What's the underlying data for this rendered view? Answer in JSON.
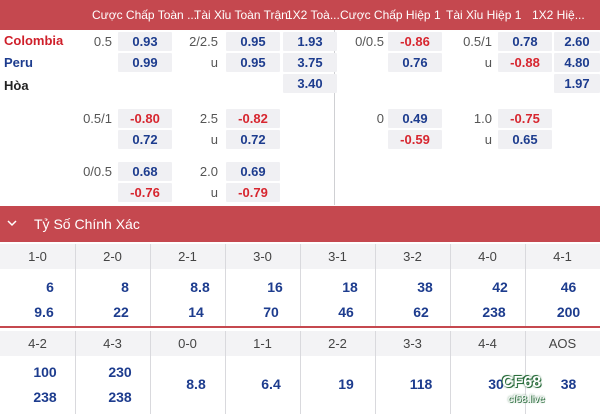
{
  "header": {
    "col1": "Cược Chấp Toàn ...",
    "col2": "Tài Xỉu Toàn Trận",
    "col3": "1X2 Toà...",
    "col4": "Cược Chấp Hiệp 1",
    "col5": "Tài Xỉu Hiệp 1",
    "col6": "1X2 Hiệ..."
  },
  "teams": {
    "home": "Colombia",
    "away": "Peru",
    "draw": "Hòa"
  },
  "rows": [
    {
      "hcp_ft": "0.5",
      "hcp_ft_home": "0.93",
      "hcp_ft_away": "0.99",
      "ou_ft": "2/2.5",
      "ou_ft_over": "0.95",
      "ou_ft_u": "u",
      "ou_ft_under": "0.95",
      "x_home": "1.93",
      "x_away": "3.75",
      "x_draw": "3.40",
      "hcp_h1": "0/0.5",
      "hcp_h1_home": "-0.86",
      "hcp_h1_away": "0.76",
      "ou_h1": "0.5/1",
      "ou_h1_over": "0.78",
      "ou_h1_u": "u",
      "ou_h1_under": "-0.88",
      "x1_home": "2.60",
      "x1_away": "4.80",
      "x1_draw": "1.97"
    },
    {
      "hcp_ft": "0.5/1",
      "hcp_ft_home": "-0.80",
      "hcp_ft_away": "0.72",
      "ou_ft": "2.5",
      "ou_ft_over": "-0.82",
      "ou_ft_u": "u",
      "ou_ft_under": "0.72",
      "hcp_h1": "0",
      "hcp_h1_home": "0.49",
      "hcp_h1_away": "-0.59",
      "ou_h1": "1.0",
      "ou_h1_over": "-0.75",
      "ou_h1_u": "u",
      "ou_h1_under": "0.65"
    },
    {
      "hcp_ft": "0/0.5",
      "hcp_ft_home": "0.68",
      "hcp_ft_away": "-0.76",
      "ou_ft": "2.0",
      "ou_ft_over": "0.69",
      "ou_ft_u": "u",
      "ou_ft_under": "-0.79"
    }
  ],
  "correct_score": {
    "title": "Tỷ Số Chính Xác",
    "row1": {
      "labels": [
        "1-0",
        "2-0",
        "2-1",
        "3-0",
        "3-1",
        "3-2",
        "4-0",
        "4-1"
      ],
      "top": [
        "6",
        "8",
        "8.8",
        "16",
        "18",
        "38",
        "42",
        "46"
      ],
      "bottom": [
        "9.6",
        "22",
        "14",
        "70",
        "46",
        "62",
        "238",
        "200"
      ]
    },
    "row2": {
      "labels": [
        "4-2",
        "4-3",
        "0-0",
        "1-1",
        "2-2",
        "3-3",
        "4-4",
        "AOS"
      ],
      "top": [
        "100",
        "230",
        "",
        "",
        "",
        "",
        "",
        ""
      ],
      "mid": [
        "",
        "",
        "8.8",
        "6.4",
        "19",
        "118",
        "30",
        "38"
      ],
      "bottom": [
        "238",
        "238",
        "",
        "",
        "",
        "",
        "",
        ""
      ]
    }
  },
  "logo": {
    "name": "CF68",
    "sub": "cf68.live"
  },
  "colors": {
    "brand": "#c5484f",
    "positive": "#1d3c8e",
    "negative": "#d7262f"
  }
}
